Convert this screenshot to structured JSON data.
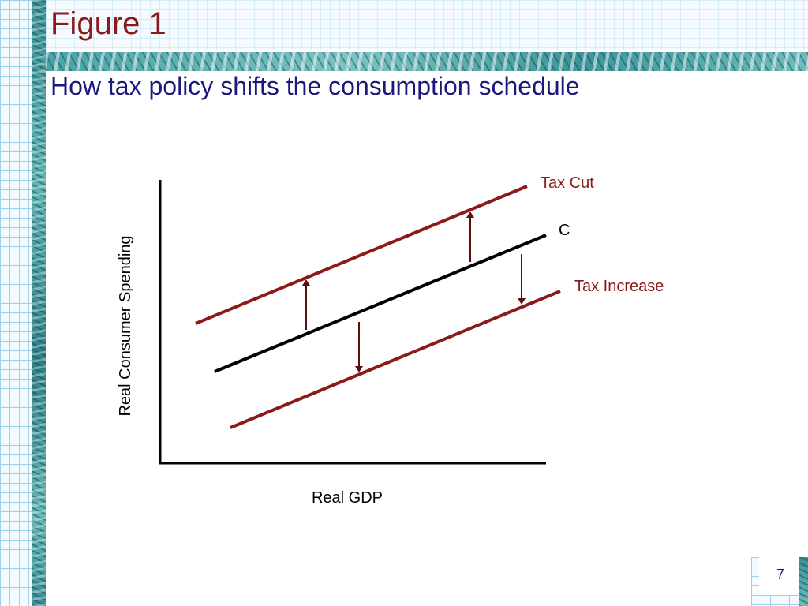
{
  "slide": {
    "figure_label": "Figure 1",
    "title": "How tax policy shifts the consumption schedule",
    "page_number": "7"
  },
  "colors": {
    "figure_label": "#8b1a1a",
    "title": "#1a1a7a",
    "shifted_lines": "#8b1a1a",
    "base_line": "#000000"
  },
  "diagram": {
    "x_axis_label": "Real GDP",
    "y_axis_label": "Real Consumer Spending",
    "lines": {
      "tax_cut": "Tax Cut",
      "consumption": "C",
      "tax_increase": "Tax Increase"
    }
  }
}
